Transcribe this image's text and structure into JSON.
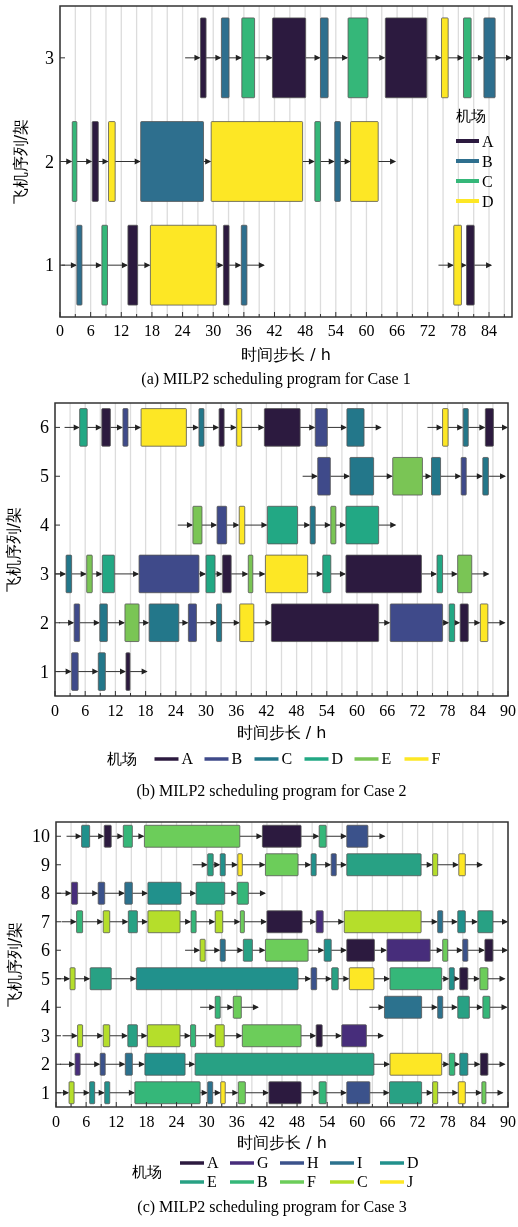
{
  "chart_data": [
    {
      "type": "bar",
      "orientation": "horizontal",
      "title": "(a) MILP2 scheduling program for Case 1",
      "xlabel": "时间步长 / h",
      "ylabel": "飞机序列/架",
      "legend_title": "机场",
      "legend": "right",
      "grid": "x",
      "categories": [
        "3",
        "2",
        "1"
      ],
      "xlim": [
        0,
        88.5
      ],
      "xticks": [
        0,
        {
          "value": 3,
          "label": null
        },
        6,
        {
          "value": 9,
          "label": null
        },
        12,
        {
          "value": 15,
          "label": null
        },
        18,
        {
          "value": 21,
          "label": null
        },
        24,
        {
          "value": 27,
          "label": null
        },
        30,
        {
          "value": 33,
          "label": null
        },
        36,
        {
          "value": 39,
          "label": null
        },
        42,
        {
          "value": 45,
          "label": null
        },
        48,
        {
          "value": 51,
          "label": null
        },
        54,
        {
          "value": 57,
          "label": null
        },
        60,
        {
          "value": 63,
          "label": null
        },
        66,
        {
          "value": 69,
          "label": null
        },
        72,
        {
          "value": 75,
          "label": null
        },
        78,
        {
          "value": 81,
          "label": null
        },
        84,
        {
          "value": 87,
          "label": null
        }
      ],
      "series": [
        {
          "name": "A",
          "color": "#2c1a3f",
          "base": [
            27.5,
            6.3,
            13.3
          ],
          "values": [
            1.1,
            1.2,
            1.9
          ]
        },
        {
          "color": "#2c1a3f",
          "base": [
            41.6,
            null,
            32
          ],
          "values": [
            6.5,
            null,
            1.1
          ]
        },
        {
          "color": "#2c1a3f",
          "base": [
            63.7,
            null,
            79.6
          ],
          "values": [
            8.1,
            null,
            1.5
          ]
        },
        {
          "name": "B",
          "color": "#2e6f8e",
          "base": [
            31.6,
            15.8,
            3.3
          ],
          "values": [
            1.5,
            12.3,
            1
          ]
        },
        {
          "color": "#2e6f8e",
          "base": [
            51,
            53.8,
            35.5
          ],
          "values": [
            1.5,
            1.1,
            1.1
          ]
        },
        {
          "color": "#2e6f8e",
          "base": [
            83,
            null,
            null
          ],
          "values": [
            2.2,
            null,
            null
          ]
        },
        {
          "name": "C",
          "color": "#35b779",
          "base": [
            35.6,
            2.4,
            8.2
          ],
          "values": [
            2.5,
            0.9,
            1.1
          ]
        },
        {
          "color": "#35b779",
          "base": [
            56.4,
            49.9,
            null
          ],
          "values": [
            3.9,
            1.1,
            null
          ]
        },
        {
          "color": "#35b779",
          "base": [
            79,
            null,
            null
          ],
          "values": [
            1.5,
            null,
            null
          ]
        },
        {
          "name": "D",
          "color": "#fde725",
          "base": [
            74.7,
            9.5,
            17.7
          ],
          "values": [
            1.3,
            1.3,
            12.9
          ]
        },
        {
          "color": "#fde725",
          "base": [
            null,
            29.6,
            77.1
          ],
          "values": [
            null,
            17.9,
            1.5
          ]
        },
        {
          "color": "#fde725",
          "base": [
            null,
            56.9,
            null
          ],
          "values": [
            null,
            5.4,
            null
          ]
        }
      ]
    },
    {
      "type": "bar",
      "orientation": "horizontal",
      "title": "(b) MILP2 scheduling program for Case 2",
      "xlabel": "时间步长 / h",
      "ylabel": "飞机序列/架",
      "legend_title": "机场",
      "legend": "bottom",
      "grid": "x",
      "categories": [
        "6",
        "5",
        "4",
        "3",
        "2",
        "1"
      ],
      "xlim": [
        0,
        90
      ],
      "xticks": [
        0,
        {
          "value": 3,
          "label": null
        },
        6,
        {
          "value": 9,
          "label": null
        },
        12,
        {
          "value": 15,
          "label": null
        },
        18,
        {
          "value": 21,
          "label": null
        },
        24,
        {
          "value": 27,
          "label": null
        },
        30,
        {
          "value": 33,
          "label": null
        },
        36,
        {
          "value": 39,
          "label": null
        },
        42,
        {
          "value": 45,
          "label": null
        },
        48,
        {
          "value": 51,
          "label": null
        },
        54,
        {
          "value": 57,
          "label": null
        },
        60,
        {
          "value": 63,
          "label": null
        },
        66,
        {
          "value": 69,
          "label": null
        },
        72,
        {
          "value": 75,
          "label": null
        },
        78,
        {
          "value": 81,
          "label": null
        },
        84,
        {
          "value": 87,
          "label": null
        },
        90
      ],
      "series": [
        {
          "name": "A",
          "color": "#2c1a3f",
          "base": [
            9.3,
            null,
            null,
            33.3,
            43,
            14.1
          ],
          "values": [
            1.7,
            null,
            null,
            1.7,
            21.3,
            0.8
          ]
        },
        {
          "color": "#2c1a3f",
          "base": [
            32.6,
            null,
            null,
            57.8,
            80.5,
            null
          ],
          "values": [
            1,
            null,
            null,
            15,
            1.6,
            null
          ]
        },
        {
          "color": "#2c1a3f",
          "base": [
            41.6,
            null,
            null,
            null,
            null,
            null
          ],
          "values": [
            7.1,
            null,
            null,
            null,
            null,
            null
          ]
        },
        {
          "color": "#2c1a3f",
          "base": [
            85.5,
            null,
            null,
            null,
            null,
            null
          ],
          "values": [
            1.6,
            null,
            null,
            null,
            null,
            null
          ]
        },
        {
          "name": "B",
          "color": "#3f4a8a",
          "base": [
            13.5,
            52.2,
            32.2,
            16.7,
            3.8,
            3.3
          ],
          "values": [
            1,
            2.5,
            1.9,
            11.9,
            1.1,
            1.3
          ]
        },
        {
          "color": "#3f4a8a",
          "base": [
            51.7,
            80.7,
            null,
            null,
            26.5,
            null
          ],
          "values": [
            2.4,
            1,
            null,
            null,
            1.6,
            null
          ]
        },
        {
          "color": "#3f4a8a",
          "base": [
            null,
            null,
            null,
            null,
            66.6,
            null
          ],
          "values": [
            null,
            null,
            null,
            null,
            10.4,
            null
          ]
        },
        {
          "name": "C",
          "color": "#23778a",
          "base": [
            28.6,
            58.6,
            50.7,
            2.2,
            8.9,
            8.6
          ],
          "values": [
            1,
            4.7,
            1,
            1.1,
            1.5,
            1.4
          ]
        },
        {
          "color": "#23778a",
          "base": [
            58,
            74.8,
            null,
            null,
            18.7,
            null
          ],
          "values": [
            3.4,
            1.8,
            null,
            null,
            5.9,
            null
          ]
        },
        {
          "color": "#23778a",
          "base": [
            81.1,
            85,
            null,
            null,
            32.1,
            null
          ],
          "values": [
            1,
            1.1,
            null,
            null,
            1,
            null
          ]
        },
        {
          "name": "D",
          "color": "#22a884",
          "base": [
            4.9,
            null,
            42.2,
            9.4,
            78.3,
            null
          ],
          "values": [
            1.5,
            null,
            6,
            2.4,
            1.1,
            null
          ]
        },
        {
          "color": "#22a884",
          "base": [
            null,
            null,
            57.8,
            30,
            null,
            null
          ],
          "values": [
            null,
            null,
            6.5,
            1.8,
            null,
            null
          ]
        },
        {
          "color": "#22a884",
          "base": [
            null,
            null,
            null,
            53.2,
            null,
            null
          ],
          "values": [
            null,
            null,
            null,
            1.6,
            null,
            null
          ]
        },
        {
          "color": "#22a884",
          "base": [
            null,
            null,
            null,
            75.9,
            null,
            null
          ],
          "values": [
            null,
            null,
            null,
            1.1,
            null,
            null
          ]
        },
        {
          "name": "E",
          "color": "#7ac555",
          "base": [
            null,
            67.1,
            27.4,
            6.3,
            13.9,
            null
          ],
          "values": [
            null,
            5.9,
            1.8,
            1.1,
            2.8,
            null
          ]
        },
        {
          "color": "#7ac555",
          "base": [
            null,
            null,
            54.8,
            38.4,
            null,
            null
          ],
          "values": [
            null,
            null,
            1,
            0.9,
            null,
            null
          ]
        },
        {
          "color": "#7ac555",
          "base": [
            null,
            null,
            null,
            80,
            null,
            null
          ],
          "values": [
            null,
            null,
            null,
            2.8,
            null,
            null
          ]
        },
        {
          "name": "F",
          "color": "#fde725",
          "base": [
            17.1,
            null,
            36.6,
            41.8,
            36.7,
            null
          ],
          "values": [
            9,
            null,
            1.1,
            8.4,
            2.8,
            null
          ]
        },
        {
          "color": "#fde725",
          "base": [
            36.1,
            null,
            null,
            null,
            84.5,
            null
          ],
          "values": [
            1,
            null,
            null,
            null,
            1.5,
            null
          ]
        },
        {
          "color": "#fde725",
          "base": [
            77,
            null,
            null,
            null,
            null,
            null
          ],
          "values": [
            1.1,
            null,
            null,
            null,
            null,
            null
          ]
        }
      ]
    },
    {
      "type": "bar",
      "orientation": "horizontal",
      "title": "(c) MILP2 scheduling program for Case 3",
      "xlabel": "时间步长 / h",
      "ylabel": "飞机序列/架",
      "legend_title": "机场",
      "legend": "bottom",
      "grid": "x",
      "categories": [
        "10",
        "9",
        "8",
        "7",
        "6",
        "5",
        "4",
        "3",
        "2",
        "1"
      ],
      "xlim": [
        0,
        90
      ],
      "xticks": [
        0,
        {
          "value": 3,
          "label": null
        },
        6,
        {
          "value": 9,
          "label": null
        },
        12,
        {
          "value": 15,
          "label": null
        },
        18,
        {
          "value": 21,
          "label": null
        },
        24,
        {
          "value": 27,
          "label": null
        },
        30,
        {
          "value": 33,
          "label": null
        },
        36,
        {
          "value": 39,
          "label": null
        },
        42,
        {
          "value": 45,
          "label": null
        },
        48,
        {
          "value": 51,
          "label": null
        },
        54,
        {
          "value": 57,
          "label": null
        },
        60,
        {
          "value": 63,
          "label": null
        },
        66,
        {
          "value": 69,
          "label": null
        },
        72,
        {
          "value": 75,
          "label": null
        },
        78,
        {
          "value": 81,
          "label": null
        },
        84,
        {
          "value": 87,
          "label": null
        },
        90
      ],
      "series": [
        {
          "name": "A",
          "color": "#2c1a3f",
          "base": [
            9.6,
            null,
            null,
            42,
            57.9,
            80.4,
            null,
            51.8,
            84.5,
            42.4
          ],
          "values": [
            1.4,
            null,
            null,
            7,
            5.5,
            1.6,
            null,
            1.2,
            1.5,
            6.4
          ]
        },
        {
          "color": "#2c1a3f",
          "base": [
            41.1,
            null,
            null,
            null,
            85.4,
            null,
            null,
            null,
            null,
            null
          ],
          "values": [
            7.7,
            null,
            null,
            null,
            1.6,
            null,
            null,
            null,
            null,
            null
          ]
        },
        {
          "name": "G",
          "color": "#472d7b",
          "base": [
            null,
            null,
            3.1,
            51.8,
            65.9,
            null,
            null,
            56.9,
            3.8,
            null
          ],
          "values": [
            null,
            null,
            1.2,
            1.4,
            8.6,
            null,
            null,
            4.9,
            1,
            null
          ]
        },
        {
          "name": "H",
          "color": "#3b528b",
          "base": [
            57.9,
            54.8,
            8.4,
            null,
            81,
            50.8,
            null,
            null,
            8.8,
            57.9
          ],
          "values": [
            4.2,
            1,
            1.3,
            null,
            1,
            1.1,
            null,
            null,
            1,
            4.6
          ]
        },
        {
          "name": "I",
          "color": "#2c728e",
          "base": [
            null,
            null,
            13.7,
            76,
            32.7,
            null,
            65.4,
            null,
            13.8,
            30.2
          ],
          "values": [
            null,
            null,
            1.5,
            1,
            1,
            null,
            7.4,
            null,
            1.4,
            1
          ]
        },
        {
          "color": "#2c728e",
          "base": [
            null,
            null,
            null,
            null,
            null,
            null,
            76,
            null,
            null,
            null
          ],
          "values": [
            null,
            null,
            null,
            null,
            null,
            null,
            1,
            null,
            null,
            null
          ]
        },
        {
          "name": "D",
          "color": "#21918c",
          "base": [
            5.1,
            32.7,
            18.3,
            80,
            53.4,
            16,
            null,
            null,
            17.7,
            6.7
          ],
          "values": [
            1.6,
            1,
            6.6,
            1.5,
            1.4,
            32.2,
            null,
            null,
            8,
            1
          ]
        },
        {
          "color": "#21918c",
          "base": [
            null,
            50.8,
            null,
            null,
            null,
            78.3,
            null,
            null,
            80.4,
            9.7
          ],
          "values": [
            null,
            1,
            null,
            null,
            null,
            1,
            null,
            null,
            1.6,
            1
          ]
        },
        {
          "name": "E",
          "color": "#28a184",
          "base": [
            null,
            30.2,
            27.9,
            14.4,
            37.3,
            6.8,
            80,
            14.3,
            27.7,
            66.4
          ],
          "values": [
            null,
            1.1,
            5.7,
            1.8,
            1.8,
            4.2,
            2.3,
            1.9,
            35.6,
            6.4
          ]
        },
        {
          "color": "#28a184",
          "base": [
            null,
            57.9,
            null,
            84,
            null,
            54.9,
            null,
            null,
            null,
            null
          ],
          "values": [
            null,
            14.8,
            null,
            3,
            null,
            1.3,
            null,
            null,
            null,
            null
          ]
        },
        {
          "name": "B",
          "color": "#35b779",
          "base": [
            13.4,
            null,
            36.1,
            4.1,
            null,
            66.5,
            31.7,
            26.8,
            78.3,
            15.7
          ],
          "values": [
            1.8,
            null,
            2.2,
            1.2,
            null,
            10.3,
            1,
            1,
            1.1,
            13
          ]
        },
        {
          "color": "#35b779",
          "base": [
            52.4,
            null,
            null,
            26.9,
            null,
            null,
            85,
            null,
            null,
            52.4
          ],
          "values": [
            1.4,
            null,
            null,
            1,
            null,
            null,
            1.4,
            null,
            null,
            1.4
          ]
        },
        {
          "name": "F",
          "color": "#6ccd5a",
          "base": [
            17.6,
            41.7,
            null,
            36.7,
            41.7,
            84.4,
            35.3,
            37.1,
            null,
            36.3
          ],
          "values": [
            19,
            6.5,
            null,
            0.8,
            8.5,
            1.6,
            1.6,
            11.7,
            null,
            1.4
          ]
        },
        {
          "color": "#6ccd5a",
          "base": [
            null,
            null,
            null,
            null,
            77,
            null,
            null,
            null,
            null,
            84.8
          ],
          "values": [
            null,
            null,
            null,
            null,
            1,
            null,
            null,
            null,
            null,
            0.8
          ]
        },
        {
          "name": "C",
          "color": "#b5de2b",
          "base": [
            null,
            75,
            null,
            9.4,
            28.7,
            2.8,
            null,
            4.3,
            null,
            2.6
          ],
          "values": [
            null,
            1,
            null,
            1.3,
            1,
            1,
            null,
            1,
            null,
            1
          ]
        },
        {
          "color": "#b5de2b",
          "base": [
            null,
            null,
            null,
            18.3,
            null,
            null,
            null,
            9.4,
            null,
            75
          ],
          "values": [
            null,
            null,
            null,
            6.4,
            null,
            null,
            null,
            1.3,
            null,
            1
          ]
        },
        {
          "color": "#b5de2b",
          "base": [
            null,
            null,
            null,
            31.7,
            null,
            null,
            null,
            18.2,
            null,
            null
          ],
          "values": [
            null,
            null,
            null,
            1.5,
            null,
            null,
            null,
            6.5,
            null,
            null
          ]
        },
        {
          "color": "#b5de2b",
          "base": [
            null,
            null,
            null,
            57.4,
            null,
            null,
            null,
            31.7,
            null,
            null
          ],
          "values": [
            null,
            null,
            null,
            15.3,
            null,
            null,
            null,
            1.8,
            null,
            null
          ]
        },
        {
          "name": "J",
          "color": "#fde725",
          "base": [
            null,
            36.2,
            null,
            null,
            null,
            58.4,
            null,
            null,
            66.5,
            32.8
          ],
          "values": [
            null,
            0.9,
            null,
            null,
            null,
            4.9,
            null,
            null,
            10.3,
            0.9
          ]
        },
        {
          "color": "#fde725",
          "base": [
            null,
            80.2,
            null,
            null,
            null,
            null,
            null,
            null,
            null,
            80.1
          ],
          "values": [
            null,
            1.3,
            null,
            null,
            null,
            null,
            null,
            null,
            null,
            1.4
          ]
        }
      ]
    }
  ]
}
